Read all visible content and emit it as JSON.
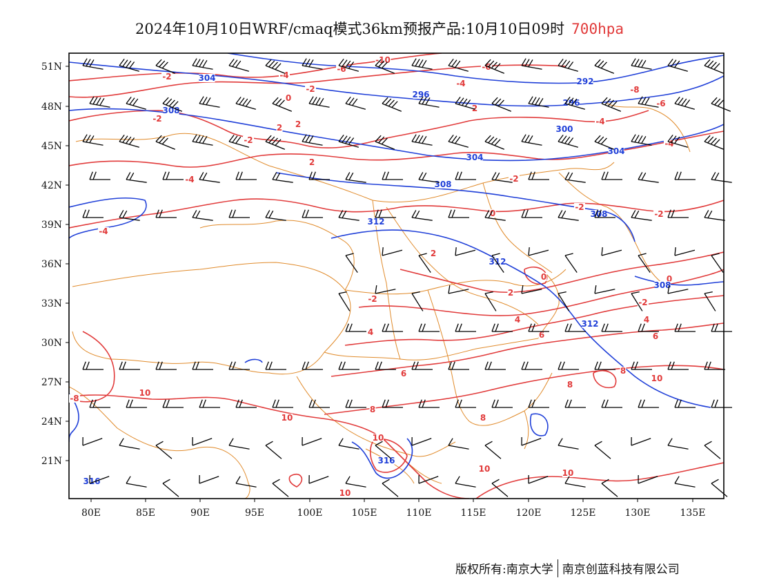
{
  "title": {
    "main": "2024年10月10日WRF/cmaq模式36km预报产品:10月10日09时",
    "level": "700hpa"
  },
  "colors": {
    "temperature": "#e13a3a",
    "geopotential": "#1f3fd8",
    "boundary": "#e08a2a",
    "wind": "#000000"
  },
  "axes": {
    "x_ticks": [
      "80E",
      "85E",
      "90E",
      "95E",
      "100E",
      "105E",
      "110E",
      "115E",
      "120E",
      "125E",
      "130E",
      "135E"
    ],
    "y_ticks": [
      "51N",
      "48N",
      "45N",
      "42N",
      "39N",
      "36N",
      "33N",
      "30N",
      "27N",
      "24N",
      "21N"
    ]
  },
  "contour_labels": {
    "temperature": [
      "-10",
      "-8",
      "-6",
      "-4",
      "-2",
      "0",
      "2",
      "4",
      "6",
      "8",
      "10"
    ],
    "geopotential": [
      "292",
      "296",
      "300",
      "304",
      "308",
      "312",
      "316"
    ]
  },
  "credit": {
    "left": "版权所有:南京大学",
    "right": "南京创蓝科技有限公司"
  }
}
